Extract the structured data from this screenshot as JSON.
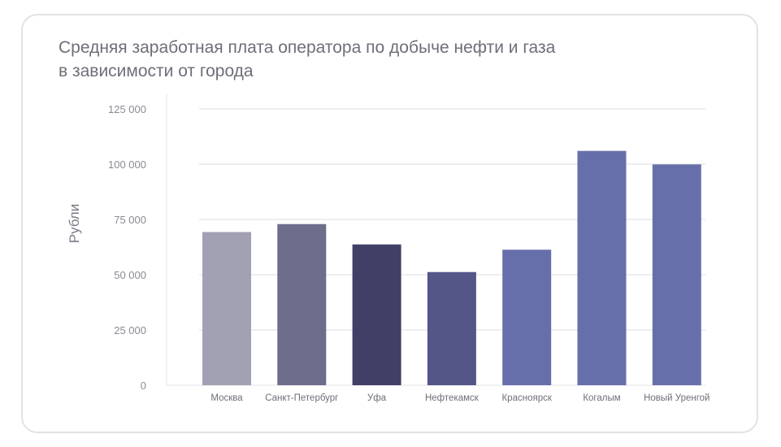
{
  "chart_data": {
    "type": "bar",
    "title": "Средняя заработная плата оператора по добыче нефти и газа в зависимости от города",
    "title_lines": [
      "Средняя заработная плата оператора по добыче нефти и газа",
      "в зависимости от города"
    ],
    "xlabel": "",
    "ylabel": "Рубли",
    "ylim": [
      0,
      125000
    ],
    "yticks": [
      0,
      25000,
      50000,
      75000,
      100000,
      125000
    ],
    "ytick_labels": [
      "0",
      "25 000",
      "50 000",
      "75 000",
      "100 000",
      "125 000"
    ],
    "categories": [
      "Москва",
      "Санкт-Петербург",
      "Уфа",
      "Нефтекамск",
      "Красноярск",
      "Когалым",
      "Новый Уренгой"
    ],
    "values": [
      69300,
      72900,
      63700,
      51200,
      61300,
      106000,
      99900
    ],
    "colors": [
      "#a2a0b3",
      "#6e6d8b",
      "#423f67",
      "#545688",
      "#676fab",
      "#676fab",
      "#676fab"
    ],
    "grid": true,
    "legend": "none"
  }
}
